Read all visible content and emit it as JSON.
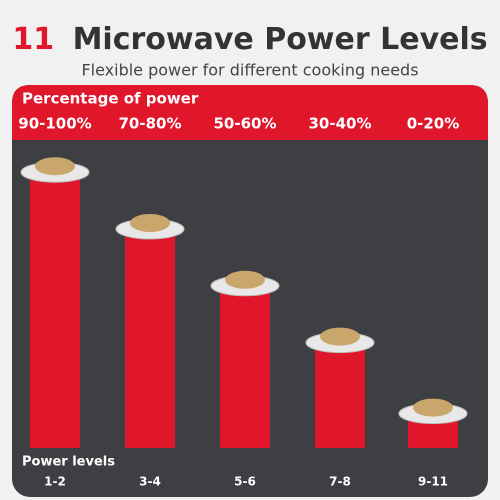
{
  "chart_data": {
    "type": "bar",
    "title_number": "11",
    "title": "Microwave Power Levels",
    "subtitle": "Flexible power for different cooking needs",
    "value_axis_label": "Percentage of power",
    "category_axis_label": "Power levels",
    "categories": [
      "1-2",
      "3-4",
      "5-6",
      "7-8",
      "9-11"
    ],
    "values": [
      95,
      75,
      55,
      35,
      10
    ],
    "value_labels": [
      "90-100%",
      "70-80%",
      "50-60%",
      "30-40%",
      "0-20%"
    ],
    "ylim": [
      0,
      100
    ],
    "color": "#e0162b"
  }
}
